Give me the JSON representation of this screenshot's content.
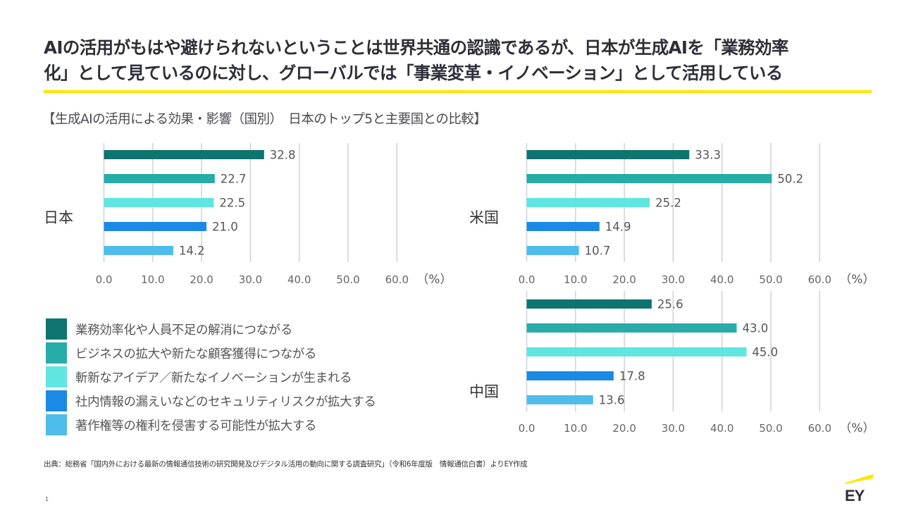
{
  "title": {
    "line1": "AIの活用がもはや避けられないということは世界共通の認識であるが、日本が生成AIを「業務効率",
    "line2": "化」として見ているのに対し、グローバルでは「事業変革・イノベーション」として活用している"
  },
  "accent_color": "#ffe600",
  "subtitle": "【生成AIの活用による効果・影響（国別）　日本のトップ5と主要国との比較】",
  "legend": [
    {
      "label": "業務効率化や人員不足の解消につながる",
      "color": "#0e7470"
    },
    {
      "label": "ビジネスの拡大や新たな顧客獲得につながる",
      "color": "#27aca8"
    },
    {
      "label": "斬新なアイデア／新たなイノベーションが生まれる",
      "color": "#60e6e0"
    },
    {
      "label": "社内情報の漏えいなどのセキュリティリスクが拡大する",
      "color": "#1a8ae4"
    },
    {
      "label": "著作権等の権利を侵害する可能性が拡大する",
      "color": "#4fbdeb"
    }
  ],
  "chart_data": [
    {
      "type": "bar",
      "orientation": "horizontal",
      "title": "日本",
      "categories": [
        "業務効率化や人員不足の解消につながる",
        "ビジネスの拡大や新たな顧客獲得につながる",
        "斬新なアイデア／新たなイノベーションが生まれる",
        "社内情報の漏えいなどのセキュリティリスクが拡大する",
        "著作権等の権利を侵害する可能性が拡大する"
      ],
      "values": [
        32.8,
        22.7,
        22.5,
        21.0,
        14.2
      ],
      "labels": [
        "32.8",
        "22.7",
        "22.5",
        "21.0",
        "14.2"
      ],
      "xlim": [
        0,
        60
      ],
      "xticks": [
        "0.0",
        "10.0",
        "20.0",
        "30.0",
        "40.0",
        "50.0",
        "60.0"
      ],
      "xunit": "（%）",
      "grid": true
    },
    {
      "type": "bar",
      "orientation": "horizontal",
      "title": "米国",
      "categories": [
        "業務効率化や人員不足の解消につながる",
        "ビジネスの拡大や新たな顧客獲得につながる",
        "斬新なアイデア／新たなイノベーションが生まれる",
        "社内情報の漏えいなどのセキュリティリスクが拡大する",
        "著作権等の権利を侵害する可能性が拡大する"
      ],
      "values": [
        33.3,
        50.2,
        25.2,
        14.9,
        10.7
      ],
      "labels": [
        "33.3",
        "50.2",
        "25.2",
        "14.9",
        "10.7"
      ],
      "xlim": [
        0,
        60
      ],
      "xticks": [
        "0.0",
        "10.0",
        "20.0",
        "30.0",
        "40.0",
        "50.0",
        "60.0"
      ],
      "xunit": "（%）",
      "grid": true
    },
    {
      "type": "bar",
      "orientation": "horizontal",
      "title": "中国",
      "categories": [
        "業務効率化や人員不足の解消につながる",
        "ビジネスの拡大や新たな顧客獲得につながる",
        "斬新なアイデア／新たなイノベーションが生まれる",
        "社内情報の漏えいなどのセキュリティリスクが拡大する",
        "著作権等の権利を侵害する可能性が拡大する"
      ],
      "values": [
        25.6,
        43.0,
        45.0,
        17.8,
        13.6
      ],
      "labels": [
        "25.6",
        "43.0",
        "45.0",
        "17.8",
        "13.6"
      ],
      "xlim": [
        0,
        60
      ],
      "xticks": [
        "0.0",
        "10.0",
        "20.0",
        "30.0",
        "40.0",
        "50.0",
        "60.0"
      ],
      "xunit": "（%）",
      "grid": true
    }
  ],
  "source": "出典：総務省「国内外における最新の情報通信技術の研究開発及びデジタル活用の動向に関する調査研究」（令和6年度版　情報通信白書）よりEY作成",
  "page_number": "1",
  "logo": {
    "text": "EY",
    "name": "ey-logo"
  }
}
